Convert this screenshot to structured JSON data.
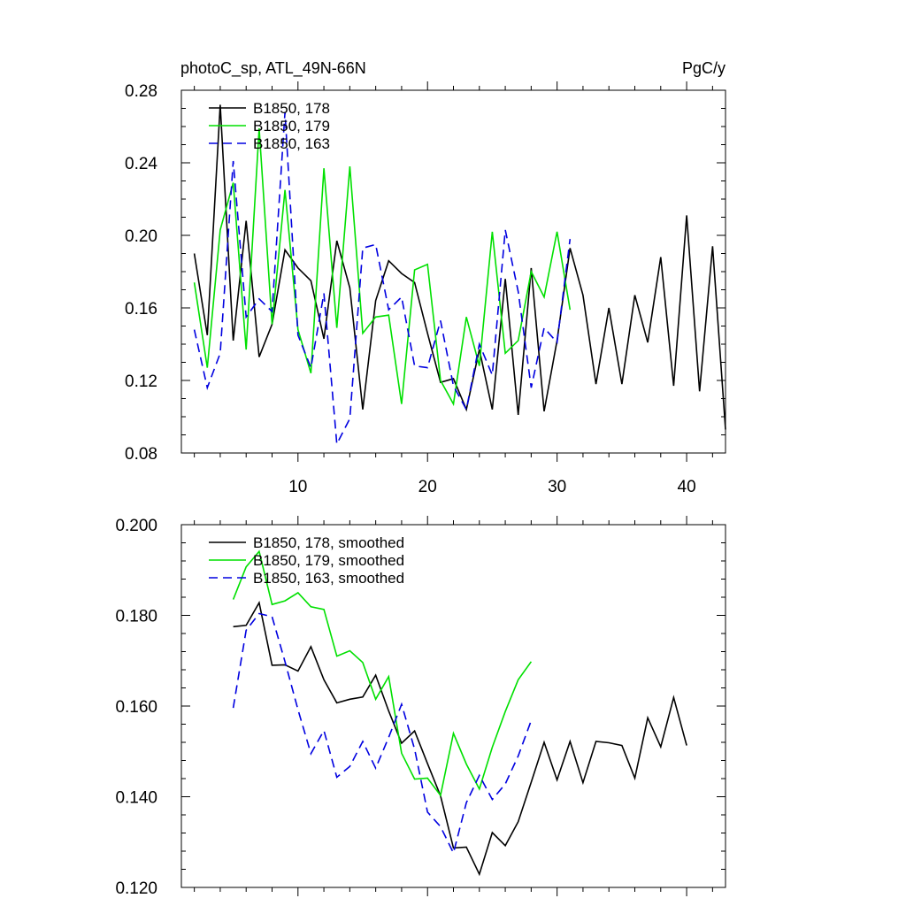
{
  "chart_data": [
    {
      "type": "line",
      "title_left": "photoC_sp, ATL_49N-66N",
      "title_right": "PgC/y",
      "xlim": [
        1,
        43
      ],
      "ylim": [
        0.08,
        0.28
      ],
      "x_ticks": [
        10,
        20,
        30,
        40
      ],
      "x_tick_labels": [
        "10",
        "20",
        "30",
        "40"
      ],
      "y_ticks": [
        0.08,
        0.12,
        0.16,
        0.2,
        0.24,
        0.28
      ],
      "y_tick_labels": [
        "0.08",
        "0.12",
        "0.16",
        "0.20",
        "0.24",
        "0.28"
      ],
      "legend_position": "top-left",
      "series": [
        {
          "name": "B1850, 178",
          "color": "#000000",
          "dash": "solid",
          "x": [
            2,
            3,
            4,
            5,
            6,
            7,
            8,
            9,
            10,
            11,
            12,
            13,
            14,
            15,
            16,
            17,
            18,
            19,
            20,
            21,
            22,
            23,
            24,
            25,
            26,
            27,
            28,
            29,
            30,
            31,
            32,
            33,
            34,
            35,
            36,
            37,
            38,
            39,
            40,
            41,
            42,
            43
          ],
          "values": [
            0.19,
            0.145,
            0.272,
            0.142,
            0.208,
            0.133,
            0.151,
            0.192,
            0.182,
            0.175,
            0.143,
            0.197,
            0.171,
            0.104,
            0.164,
            0.186,
            0.179,
            0.174,
            0.146,
            0.119,
            0.121,
            0.104,
            0.137,
            0.104,
            0.176,
            0.101,
            0.182,
            0.103,
            0.142,
            0.193,
            0.167,
            0.118,
            0.16,
            0.118,
            0.167,
            0.141,
            0.188,
            0.117,
            0.211,
            0.114,
            0.194,
            0.093
          ]
        },
        {
          "name": "B1850, 179",
          "color": "#00e000",
          "dash": "solid",
          "x": [
            2,
            3,
            4,
            5,
            6,
            7,
            8,
            9,
            10,
            11,
            12,
            13,
            14,
            15,
            16,
            17,
            18,
            19,
            20,
            21,
            22,
            23,
            24,
            25,
            26,
            27,
            28,
            29,
            30,
            31
          ],
          "values": [
            0.174,
            0.127,
            0.203,
            0.229,
            0.137,
            0.259,
            0.151,
            0.225,
            0.148,
            0.124,
            0.237,
            0.149,
            0.238,
            0.146,
            0.155,
            0.156,
            0.107,
            0.181,
            0.184,
            0.12,
            0.107,
            0.155,
            0.128,
            0.202,
            0.135,
            0.142,
            0.18,
            0.166,
            0.202,
            0.159
          ]
        },
        {
          "name": "B1850, 163",
          "color": "#0000e0",
          "dash": "dashed",
          "x": [
            2,
            3,
            4,
            5,
            6,
            7,
            8,
            9,
            10,
            11,
            12,
            13,
            14,
            15,
            16,
            17,
            18,
            19,
            20,
            21,
            22,
            23,
            24,
            25,
            26,
            27,
            28,
            29,
            30,
            31
          ],
          "values": [
            0.148,
            0.116,
            0.135,
            0.241,
            0.155,
            0.165,
            0.158,
            0.268,
            0.145,
            0.127,
            0.168,
            0.085,
            0.099,
            0.193,
            0.195,
            0.159,
            0.166,
            0.128,
            0.127,
            0.153,
            0.117,
            0.104,
            0.14,
            0.123,
            0.203,
            0.169,
            0.116,
            0.149,
            0.141,
            0.198
          ]
        }
      ]
    },
    {
      "type": "line",
      "xlim": [
        1,
        43
      ],
      "ylim": [
        0.12,
        0.2
      ],
      "x_ticks": [
        10,
        20,
        30,
        40
      ],
      "y_ticks": [
        0.12,
        0.14,
        0.16,
        0.18,
        0.2
      ],
      "y_tick_labels": [
        "0.120",
        "0.140",
        "0.160",
        "0.180",
        "0.200"
      ],
      "legend_position": "top-left",
      "series": [
        {
          "name": "B1850, 178, smoothed",
          "color": "#000000",
          "dash": "solid",
          "x": [
            5,
            6,
            7,
            8,
            9,
            10,
            11,
            12,
            13,
            14,
            15,
            16,
            17,
            18,
            19,
            20,
            21,
            22,
            23,
            24,
            25,
            26,
            27,
            28,
            29,
            30,
            31,
            32,
            33,
            34,
            35,
            36,
            37,
            38,
            39,
            40
          ],
          "values": [
            0.1775,
            0.1778,
            0.1828,
            0.169,
            0.1691,
            0.1677,
            0.1731,
            0.1658,
            0.1607,
            0.1615,
            0.162,
            0.1668,
            0.1589,
            0.1518,
            0.1545,
            0.1473,
            0.1402,
            0.1287,
            0.1289,
            0.1229,
            0.1321,
            0.1292,
            0.1345,
            0.1432,
            0.152,
            0.1437,
            0.1522,
            0.1431,
            0.1522,
            0.1519,
            0.1513,
            0.1441,
            0.1574,
            0.151,
            0.1619,
            0.1513
          ]
        },
        {
          "name": "B1850, 179, smoothed",
          "color": "#00e000",
          "dash": "solid",
          "x": [
            5,
            6,
            7,
            8,
            9,
            10,
            11,
            12,
            13,
            14,
            15,
            16,
            17,
            18,
            19,
            20,
            21,
            22,
            23,
            24,
            25,
            26,
            27,
            28
          ],
          "values": [
            0.1835,
            0.1907,
            0.1941,
            0.1824,
            0.1832,
            0.185,
            0.1819,
            0.1813,
            0.171,
            0.1722,
            0.1696,
            0.1615,
            0.1665,
            0.1496,
            0.1439,
            0.1441,
            0.1403,
            0.154,
            0.1472,
            0.1417,
            0.1509,
            0.1588,
            0.1658,
            0.1698
          ]
        },
        {
          "name": "B1850, 163, smoothed",
          "color": "#0000e0",
          "dash": "dashed",
          "x": [
            5,
            6,
            7,
            8,
            9,
            10,
            11,
            12,
            13,
            14,
            15,
            16,
            17,
            18,
            19,
            20,
            21,
            22,
            23,
            24,
            25,
            26,
            27,
            28
          ],
          "values": [
            0.1596,
            0.1767,
            0.1804,
            0.1797,
            0.1698,
            0.1592,
            0.1495,
            0.1546,
            0.1443,
            0.1467,
            0.1522,
            0.1463,
            0.1531,
            0.1604,
            0.1505,
            0.1366,
            0.1334,
            0.1276,
            0.1387,
            0.1447,
            0.1394,
            0.1428,
            0.149,
            0.1568
          ]
        }
      ]
    }
  ]
}
